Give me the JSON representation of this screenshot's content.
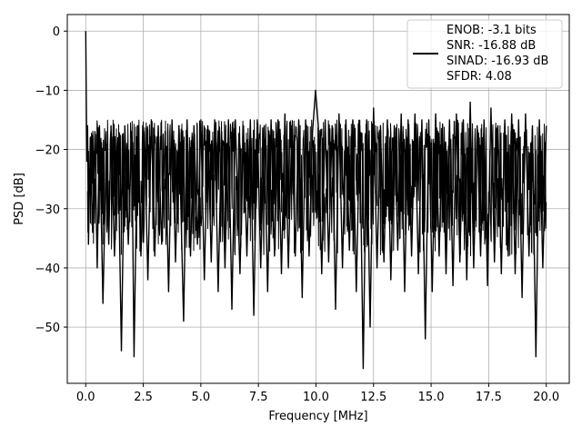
{
  "chart_data": {
    "type": "line",
    "title": "",
    "xlabel": "Frequency [MHz]",
    "ylabel": "PSD [dB]",
    "xlim": [
      -0.8,
      21.0
    ],
    "ylim": [
      -59.5,
      2.8
    ],
    "grid": true,
    "x_ticks": [
      0.0,
      2.5,
      5.0,
      7.5,
      10.0,
      12.5,
      15.0,
      17.5,
      20.0
    ],
    "x_tick_labels": [
      "0.0",
      "2.5",
      "5.0",
      "7.5",
      "10.0",
      "12.5",
      "15.0",
      "17.5",
      "20.0"
    ],
    "y_ticks": [
      0,
      -10,
      -20,
      -30,
      -40,
      -50
    ],
    "y_tick_labels": [
      "0",
      "−10",
      "−20",
      "−30",
      "−40",
      "−50"
    ],
    "legend": {
      "placement": "top-right",
      "lines": [
        "ENOB: -3.1 bits",
        "SNR: -16.88 dB",
        "SINAD: -16.93 dB",
        "SFDR: 4.08"
      ]
    },
    "series": [
      {
        "color": "#000000",
        "description_values": "noise floor spectrum from 0 to 20 MHz, fluctuating roughly between -15 and -37 dB, peak 0 dB at 0 MHz",
        "x": [
          0.0,
          0.02,
          0.05,
          0.08,
          0.12,
          0.2,
          0.3,
          0.4,
          0.5,
          0.6,
          0.75,
          0.9,
          1.0,
          1.1,
          1.25,
          1.4,
          1.55,
          1.7,
          1.85,
          2.0,
          2.1,
          2.25,
          2.4,
          2.55,
          2.7,
          2.85,
          3.0,
          3.15,
          3.3,
          3.45,
          3.6,
          3.75,
          3.9,
          4.05,
          4.25,
          4.4,
          4.55,
          4.7,
          4.85,
          5.0,
          5.15,
          5.3,
          5.45,
          5.6,
          5.75,
          5.9,
          6.05,
          6.2,
          6.35,
          6.5,
          6.7,
          6.85,
          7.0,
          7.15,
          7.3,
          7.45,
          7.6,
          7.75,
          7.9,
          8.05,
          8.2,
          8.35,
          8.5,
          8.65,
          8.8,
          8.95,
          9.1,
          9.25,
          9.4,
          9.55,
          9.7,
          9.85,
          9.98,
          10.1,
          10.25,
          10.4,
          10.55,
          10.7,
          10.85,
          11.0,
          11.15,
          11.3,
          11.45,
          11.6,
          11.75,
          11.9,
          12.05,
          12.2,
          12.35,
          12.5,
          12.65,
          12.8,
          12.95,
          13.1,
          13.25,
          13.4,
          13.55,
          13.7,
          13.85,
          14.0,
          14.15,
          14.3,
          14.45,
          14.6,
          14.75,
          14.9,
          15.05,
          15.2,
          15.35,
          15.5,
          15.65,
          15.8,
          15.95,
          16.1,
          16.25,
          16.4,
          16.55,
          16.7,
          16.85,
          17.0,
          17.15,
          17.3,
          17.45,
          17.6,
          17.75,
          17.9,
          18.05,
          18.2,
          18.35,
          18.5,
          18.65,
          18.8,
          18.95,
          19.1,
          19.25,
          19.4,
          19.55,
          19.7,
          19.85,
          20.0
        ],
        "y": [
          0.0,
          -10.0,
          -22.0,
          -16.0,
          -36.0,
          -18.0,
          -34.0,
          -17.0,
          -40.0,
          -16.0,
          -46.0,
          -19.0,
          -36.0,
          -16.0,
          -38.0,
          -18.0,
          -54.0,
          -16.0,
          -36.0,
          -17.0,
          -55.0,
          -16.0,
          -38.0,
          -17.0,
          -42.0,
          -15.0,
          -38.0,
          -16.0,
          -36.0,
          -17.0,
          -44.0,
          -15.0,
          -39.0,
          -16.0,
          -49.0,
          -15.0,
          -38.0,
          -16.0,
          -36.0,
          -15.0,
          -42.0,
          -16.0,
          -39.0,
          -15.0,
          -44.0,
          -17.0,
          -40.0,
          -15.0,
          -47.0,
          -15.0,
          -41.0,
          -16.0,
          -38.0,
          -15.0,
          -48.0,
          -15.0,
          -40.0,
          -16.0,
          -44.0,
          -15.0,
          -38.0,
          -15.0,
          -41.0,
          -14.0,
          -40.0,
          -16.0,
          -38.0,
          -15.0,
          -45.0,
          -15.0,
          -38.0,
          -17.0,
          -10.0,
          -16.0,
          -41.0,
          -15.0,
          -39.0,
          -16.0,
          -47.0,
          -14.0,
          -40.0,
          -15.0,
          -37.0,
          -15.0,
          -44.0,
          -16.0,
          -57.0,
          -15.0,
          -50.0,
          -13.0,
          -40.0,
          -16.0,
          -39.0,
          -15.0,
          -42.0,
          -16.0,
          -37.0,
          -14.0,
          -44.0,
          -15.0,
          -38.0,
          -14.0,
          -41.0,
          -15.0,
          -52.0,
          -15.0,
          -44.0,
          -14.0,
          -38.0,
          -16.0,
          -41.0,
          -15.0,
          -43.0,
          -14.0,
          -39.0,
          -15.0,
          -42.0,
          -12.0,
          -40.0,
          -16.0,
          -38.0,
          -15.0,
          -43.0,
          -13.0,
          -39.0,
          -16.0,
          -41.0,
          -15.0,
          -38.0,
          -14.0,
          -41.0,
          -15.0,
          -45.0,
          -14.0,
          -38.0,
          -16.0,
          -55.0,
          -15.0,
          -40.0,
          -16.0
        ]
      }
    ]
  }
}
